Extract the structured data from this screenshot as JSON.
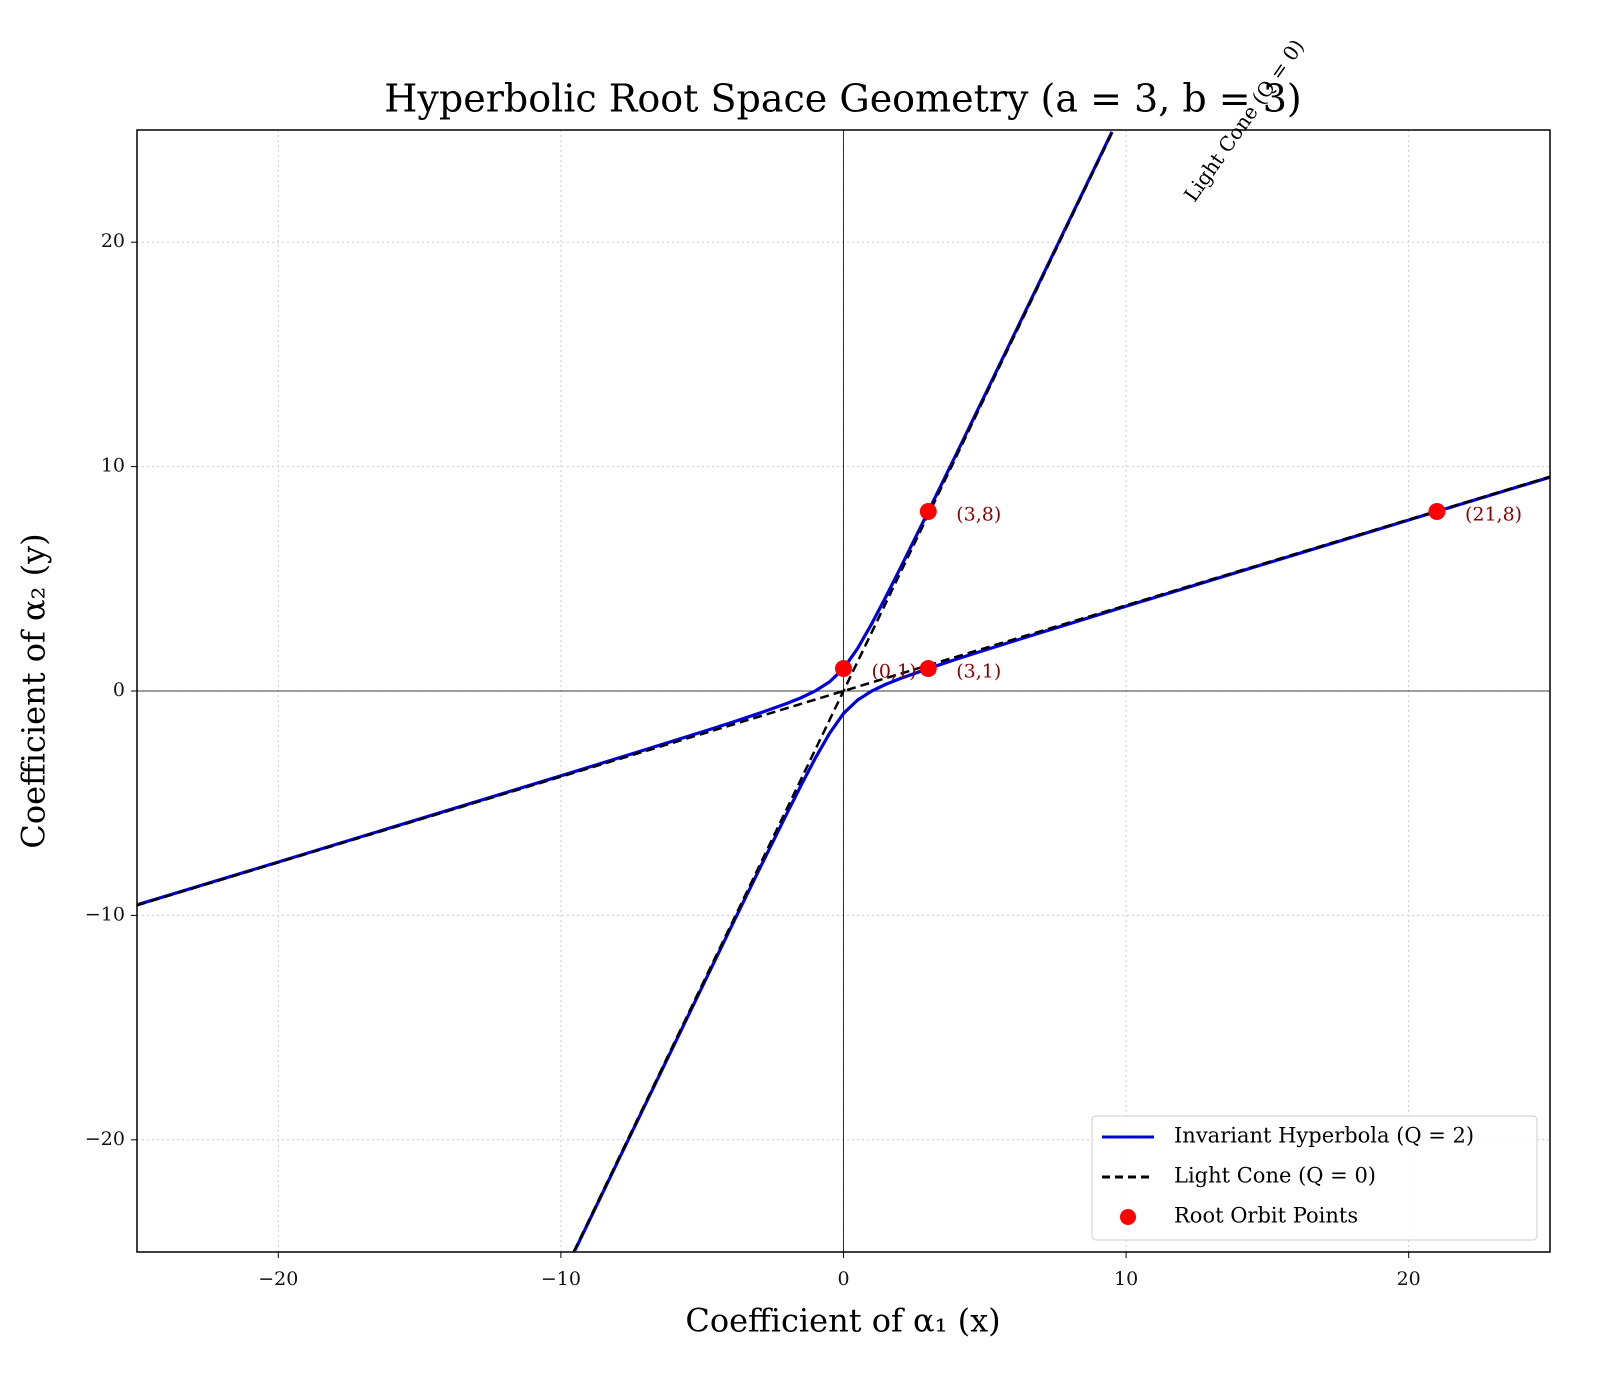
{
  "chart_data": {
    "type": "line",
    "title": "Hyperbolic Root Space Geometry (a = 3, b = 3)",
    "xlabel": "Coefficient of α₁ (x)",
    "ylabel": "Coefficient of α₂ (y)",
    "annotation": "Light Cone (Q = 0)",
    "xlim": [
      -25,
      25
    ],
    "ylim": [
      -25,
      25
    ],
    "xticks": [
      {
        "value": -20,
        "label": "−20"
      },
      {
        "value": -10,
        "label": "−10"
      },
      0,
      10,
      20
    ],
    "yticks": [
      {
        "value": -20,
        "label": "−20"
      },
      {
        "value": -10,
        "label": "−10"
      },
      0,
      10,
      20
    ],
    "grid": true,
    "legend": "lower right",
    "series": [
      {
        "name": "Invariant Hyperbola (Q = 2)",
        "color": "#0000dd",
        "style": "solid",
        "x": [
          -25,
          -20,
          -15,
          -10,
          -7,
          -5,
          -4,
          -3,
          -2,
          -1.5,
          -1,
          -0.5,
          0,
          0.5,
          1,
          1.5,
          2,
          3,
          4,
          5,
          7,
          9.5,
          null,
          -9.5,
          -7,
          -5,
          -4,
          -3,
          -2,
          -1.5,
          -1,
          -0.5,
          0,
          0.5,
          1,
          1.5,
          2,
          3,
          4,
          5,
          7,
          10,
          15,
          20,
          25
        ],
        "values": [
          -9.53,
          -7.62,
          -5.7,
          -3.78,
          -2.61,
          -1.82,
          -1.42,
          -1,
          -0.55,
          -0.3,
          0,
          0.4,
          1,
          1.9,
          3,
          4.2,
          5.45,
          8,
          10.58,
          13.18,
          18.39,
          24.92,
          null,
          -24.92,
          -18.39,
          -13.18,
          -10.58,
          -8,
          -5.45,
          -4.2,
          -3,
          -1.9,
          -1,
          -0.4,
          0,
          0.3,
          0.55,
          1,
          1.42,
          1.82,
          2.61,
          3.78,
          5.7,
          7.62,
          9.53
        ]
      },
      {
        "name": "Light Cone (Q = 0)",
        "color": "#000000",
        "style": "dashed",
        "x": [
          -9.55,
          9.55,
          null,
          -25,
          25
        ],
        "values": [
          -25,
          25,
          null,
          -9.55,
          9.55
        ]
      },
      {
        "name": "Root Orbit Points",
        "color": "#ff0000",
        "style": "points",
        "x": [
          0,
          3,
          3,
          21
        ],
        "values": [
          1,
          1,
          8,
          8
        ],
        "point_labels": [
          "(0,1)",
          "(3,1)",
          "(3,8)",
          "(21,8)"
        ]
      }
    ]
  }
}
